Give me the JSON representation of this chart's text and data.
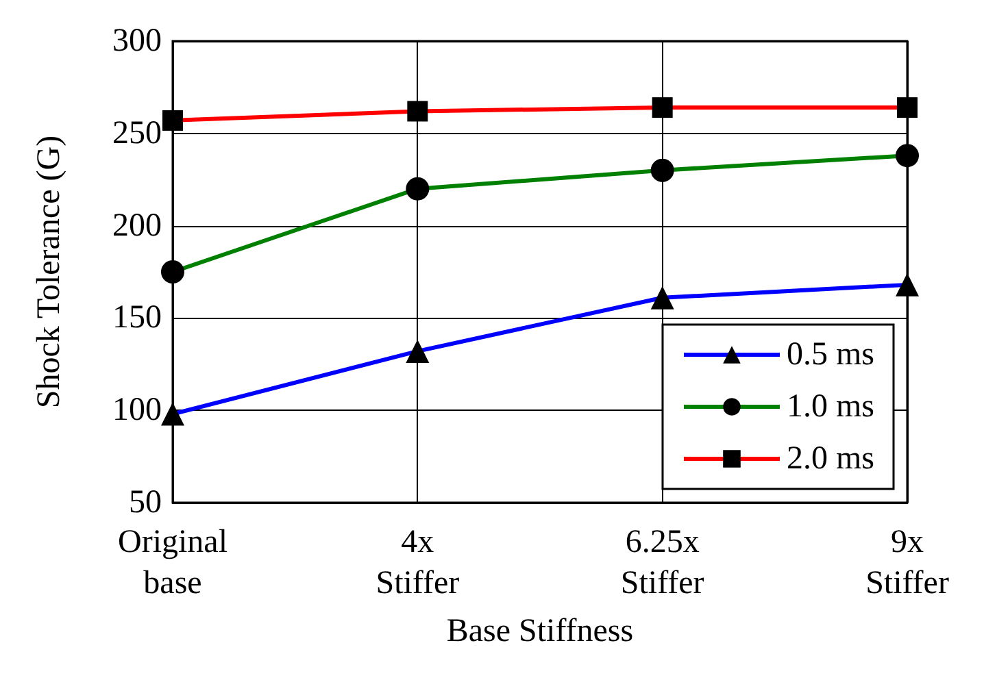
{
  "chart_data": {
    "type": "line",
    "xlabel": "Base Stiffness",
    "ylabel": "Shock Tolerance (G)",
    "categories": [
      "Original\nbase",
      "4x\nStiffer",
      "6.25x\nStiffer",
      "9x\nStiffer"
    ],
    "series": [
      {
        "name": "0.5 ms",
        "color": "#0000ff",
        "marker": "triangle",
        "values": [
          98,
          132,
          161,
          168
        ]
      },
      {
        "name": "1.0 ms",
        "color": "#008000",
        "marker": "circle",
        "values": [
          175,
          220,
          230,
          238
        ]
      },
      {
        "name": "2.0 ms",
        "color": "#ff0000",
        "marker": "square",
        "values": [
          257,
          262,
          264,
          264
        ]
      }
    ],
    "ylim": [
      50,
      300
    ],
    "yticks": [
      50,
      100,
      150,
      200,
      250,
      300
    ],
    "grid": true,
    "legend": "bottom right",
    "line_style": "solid"
  }
}
